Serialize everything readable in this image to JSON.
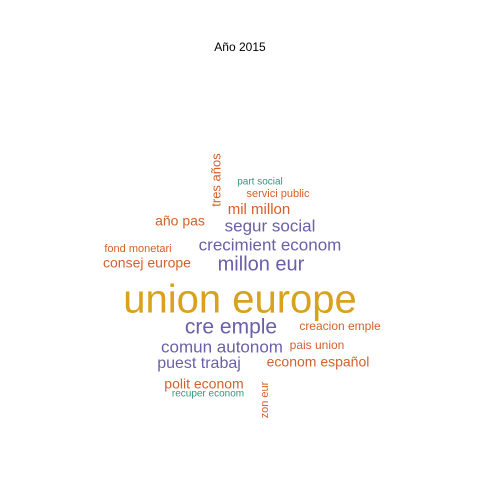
{
  "chart_data": {
    "type": "wordcloud",
    "title": "Año 2015",
    "colors": {
      "gold": "#D9A11C",
      "purple": "#6A5FA8",
      "orange": "#D4602A",
      "teal": "#2E9A7A"
    },
    "words": [
      {
        "text": "union europe",
        "weight": 10,
        "color": "#D9A11C"
      },
      {
        "text": "cre emple",
        "weight": 6,
        "color": "#6A5FA8"
      },
      {
        "text": "millon eur",
        "weight": 5,
        "color": "#6A5FA8"
      },
      {
        "text": "crecimient econom",
        "weight": 4,
        "color": "#6A5FA8"
      },
      {
        "text": "segur social",
        "weight": 4,
        "color": "#6A5FA8"
      },
      {
        "text": "comun autonom",
        "weight": 4,
        "color": "#6A5FA8"
      },
      {
        "text": "puest trabaj",
        "weight": 4,
        "color": "#6A5FA8"
      },
      {
        "text": "mil millon",
        "weight": 3,
        "color": "#D4602A"
      },
      {
        "text": "consej europe",
        "weight": 3,
        "color": "#D4602A"
      },
      {
        "text": "polit econom",
        "weight": 3,
        "color": "#D4602A"
      },
      {
        "text": "econom español",
        "weight": 3,
        "color": "#D4602A"
      },
      {
        "text": "año pas",
        "weight": 3,
        "color": "#D4602A"
      },
      {
        "text": "tres años",
        "weight": 2,
        "color": "#D4602A"
      },
      {
        "text": "creacion emple",
        "weight": 2,
        "color": "#D4602A"
      },
      {
        "text": "pais union",
        "weight": 2,
        "color": "#D4602A"
      },
      {
        "text": "fond monetari",
        "weight": 2,
        "color": "#D4602A"
      },
      {
        "text": "servici public",
        "weight": 2,
        "color": "#D4602A"
      },
      {
        "text": "zon eur",
        "weight": 2,
        "color": "#D4602A"
      },
      {
        "text": "part social",
        "weight": 1,
        "color": "#2E9A7A"
      },
      {
        "text": "recuper econom",
        "weight": 1,
        "color": "#2E9A7A"
      }
    ]
  }
}
